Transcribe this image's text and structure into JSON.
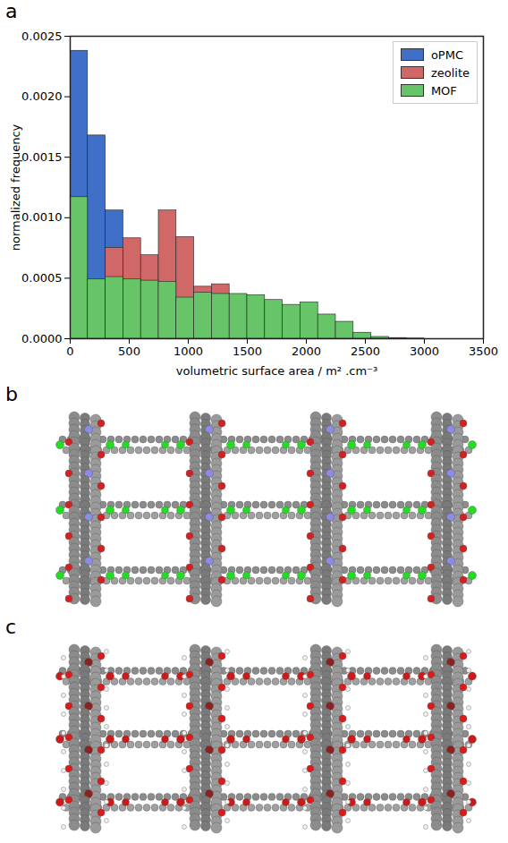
{
  "panel_labels": [
    "a",
    "b",
    "c"
  ],
  "chart_data": {
    "type": "histogram",
    "xlabel": "volumetric surface area / m² .cm⁻³",
    "ylabel": "normalized frequency",
    "xlim": [
      0,
      3500
    ],
    "ylim": [
      0,
      0.0025
    ],
    "xticks": [
      0,
      500,
      1000,
      1500,
      2000,
      2500,
      3000,
      3500
    ],
    "yticks": [
      {
        "value": 0,
        "label": "0.0000"
      },
      {
        "value": 0.0005,
        "label": "0.0005"
      },
      {
        "value": 0.001,
        "label": "0.0010"
      },
      {
        "value": 0.0015,
        "label": "0.0015"
      },
      {
        "value": 0.002,
        "label": "0.0020"
      },
      {
        "value": 0.0025,
        "label": "0.0025"
      }
    ],
    "grid": false,
    "legend": "upper right",
    "series": [
      {
        "name": "oPMC",
        "color": "#3f6fc6",
        "bins": [
          0,
          150,
          300,
          450
        ],
        "values": [
          0.00238,
          0.00168,
          0.00106
        ]
      },
      {
        "name": "zeolite",
        "color": "#d16868",
        "bins": [
          300,
          450,
          600,
          750,
          900,
          1050,
          1200,
          1350
        ],
        "values": [
          0.00075,
          0.00083,
          0.00069,
          0.00106,
          0.00084,
          0.00043,
          0.00045
        ]
      },
      {
        "name": "MOF",
        "color": "#68c468",
        "bins": [
          0,
          150,
          300,
          450,
          600,
          750,
          900,
          1050,
          1200,
          1350,
          1500,
          1650,
          1800,
          1950,
          2100,
          2250,
          2400,
          2550,
          2700,
          2850,
          3000
        ],
        "values": [
          0.00117,
          0.00049,
          0.00051,
          0.00049,
          0.00048,
          0.00047,
          0.00034,
          0.00038,
          0.00037,
          0.00037,
          0.00036,
          0.00032,
          0.00028,
          0.0003,
          0.0002,
          0.00014,
          5e-05,
          1.5e-05,
          6e-06,
          2e-06
        ]
      }
    ]
  }
}
